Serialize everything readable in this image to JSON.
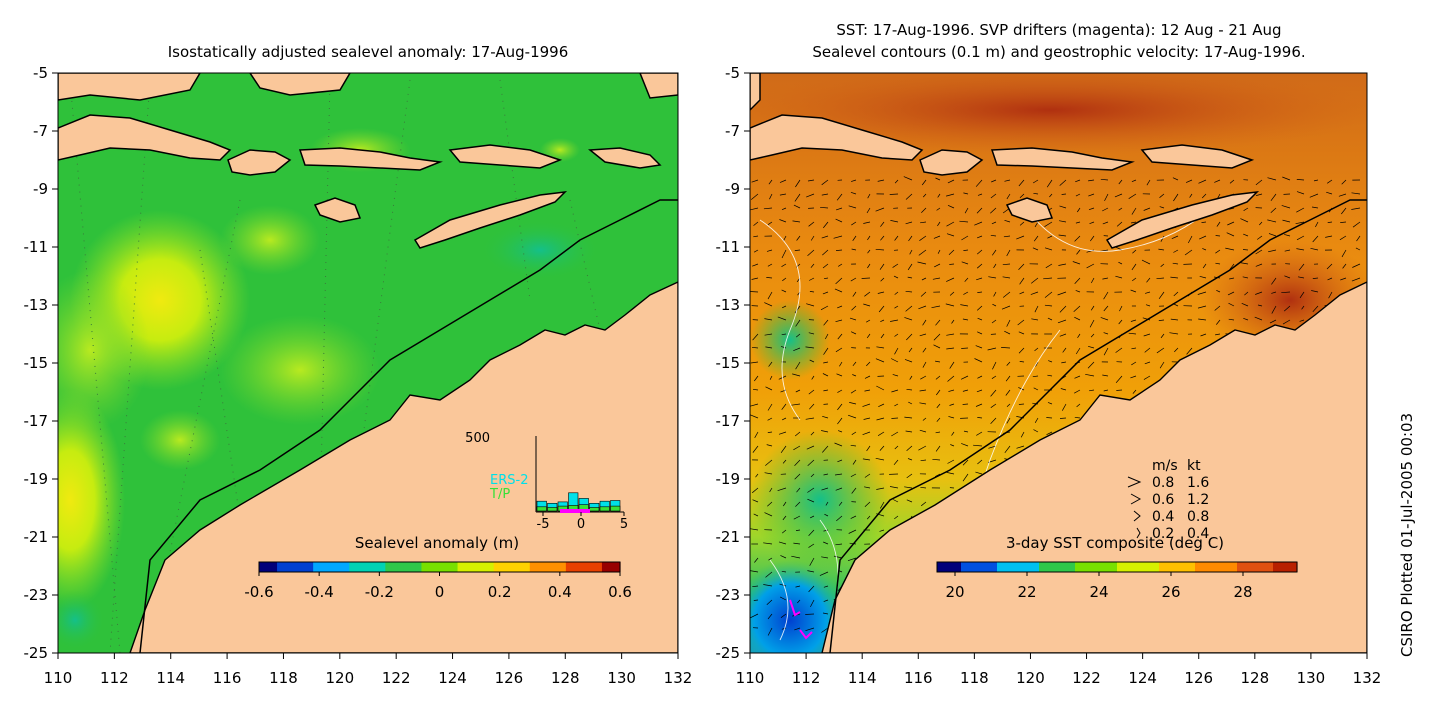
{
  "credit": "CSIRO Plotted 01-Jul-2005 00:03",
  "chart_data": [
    {
      "type": "heatmap",
      "title": "Isostatically adjusted sealevel anomaly: 17-Aug-1996",
      "xlim": [
        110,
        132
      ],
      "ylim": [
        -25,
        -5
      ],
      "xticks": [
        "110",
        "112",
        "114",
        "116",
        "118",
        "120",
        "122",
        "124",
        "126",
        "128",
        "130",
        "132"
      ],
      "yticks": [
        "-5",
        "-7",
        "-9",
        "-11",
        "-13",
        "-15",
        "-17",
        "-19",
        "-21",
        "-23",
        "-25"
      ],
      "colorbar": {
        "label": "Sealevel anomaly (m)",
        "ticks": [
          "-0.6",
          "-0.4",
          "-0.2",
          "0",
          "0.2",
          "0.4",
          "0.6"
        ],
        "range": [
          -0.6,
          0.6
        ],
        "colors": [
          "#00007a",
          "#0040d0",
          "#00a8ff",
          "#00d2b4",
          "#2fc84a",
          "#78e000",
          "#d6f000",
          "#ffd200",
          "#ff9000",
          "#e84000",
          "#980000"
        ]
      },
      "colors": {
        "land": "#fac79a",
        "ocean": "#2fc13a"
      },
      "features": [
        {
          "label": "positive anomaly",
          "lon": 113.8,
          "lat": -12.8,
          "value": 0.25
        },
        {
          "label": "positive anomaly",
          "lon": 110.4,
          "lat": -19.8,
          "value": 0.3
        },
        {
          "label": "positive anomaly",
          "lon": 117.0,
          "lat": -15.5,
          "value": 0.15
        }
      ],
      "inset_histogram": {
        "ymax_label": "500",
        "xticks": [
          "-5",
          "0",
          "5"
        ],
        "legend": [
          "ERS-2",
          "T/P"
        ],
        "legend_colors": [
          "#00e0e8",
          "#38e038"
        ],
        "ers2": [
          70,
          55,
          65,
          130,
          90,
          55,
          70,
          75
        ],
        "tp": [
          30,
          25,
          35,
          40,
          45,
          25,
          30,
          35
        ]
      }
    },
    {
      "type": "heatmap",
      "title": "SST: 17-Aug-1996. SVP drifters (magenta): 12 Aug - 21 Aug",
      "subtitle": "Sealevel contours (0.1 m) and geostrophic velocity: 17-Aug-1996.",
      "xlim": [
        110,
        132
      ],
      "ylim": [
        -25,
        -5
      ],
      "xticks": [
        "110",
        "112",
        "114",
        "116",
        "118",
        "120",
        "122",
        "124",
        "126",
        "128",
        "130",
        "132"
      ],
      "yticks": [
        "-5",
        "-7",
        "-9",
        "-11",
        "-13",
        "-15",
        "-17",
        "-19",
        "-21",
        "-23",
        "-25"
      ],
      "colorbar": {
        "label": "3-day SST composite (deg C)",
        "ticks": [
          "20",
          "22",
          "24",
          "26",
          "28"
        ],
        "range": [
          19.5,
          29.5
        ],
        "colors": [
          "#00007a",
          "#0050e0",
          "#00c0f0",
          "#2fc84a",
          "#78e000",
          "#d6f000",
          "#ffc000",
          "#ff8a00",
          "#e05010",
          "#b82000"
        ]
      },
      "colors": {
        "land": "#fac79a",
        "drifters": "#ff00ff"
      },
      "velocity_legend": {
        "header": [
          "m/s",
          "kt"
        ],
        "rows": [
          [
            "0.8",
            "1.6"
          ],
          [
            "0.6",
            "1.2"
          ],
          [
            "0.4",
            "0.8"
          ],
          [
            "0.2",
            "0.4"
          ]
        ]
      }
    }
  ]
}
